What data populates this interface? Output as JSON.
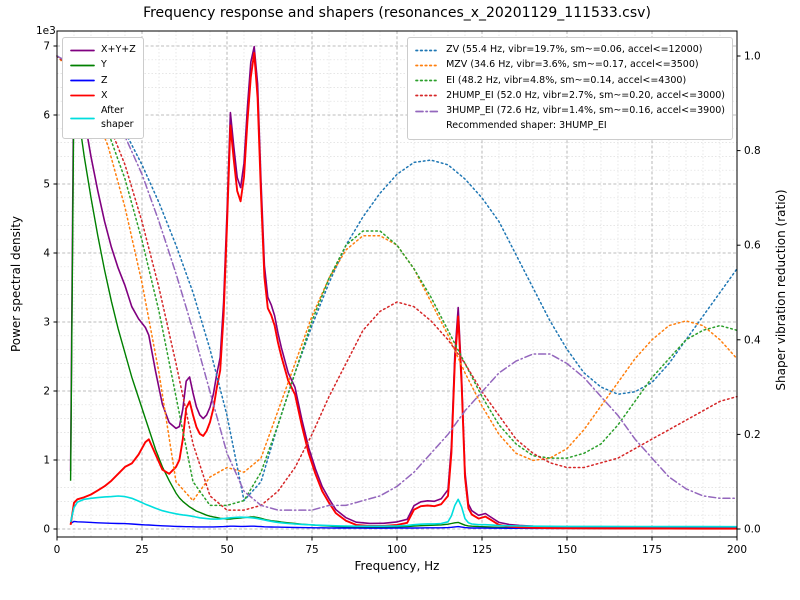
{
  "chart_data": {
    "type": "line",
    "title": "Frequency response and shapers (resonances_x_20201129_111533.csv)",
    "xlabel": "Frequency, Hz",
    "ylabel_left": "Power spectral density",
    "ylabel_right": "Shaper vibration reduction (ratio)",
    "recommendation": "Recommended shaper: 3HUMP_EI",
    "axes": {
      "x": {
        "min": 0,
        "max": 200,
        "ticks": [
          0,
          25,
          50,
          75,
          100,
          125,
          150,
          175,
          200
        ],
        "minor_step": 5
      },
      "left": {
        "min": 0,
        "max": 7000,
        "ticks": [
          0,
          1,
          2,
          3,
          4,
          5,
          6,
          7
        ],
        "scale_label": "1e3",
        "minor_step": 200
      },
      "right": {
        "min": 0,
        "max": 1,
        "ticks": [
          "0.0",
          "0.2",
          "0.4",
          "0.6",
          "0.8",
          "1.0"
        ],
        "tick_step": 0.2
      }
    },
    "psd": {
      "x": [
        4,
        5,
        6,
        8,
        10,
        12,
        14,
        16,
        18,
        20,
        22,
        24,
        26,
        27,
        29,
        31,
        33,
        35,
        36,
        37,
        38,
        39,
        40,
        41,
        42,
        43,
        44,
        45,
        46,
        47,
        48,
        49,
        50,
        51,
        52,
        53,
        54,
        55,
        56,
        57,
        58,
        59,
        60,
        61,
        62,
        63,
        64,
        65,
        66,
        68,
        70,
        72,
        74,
        76,
        78,
        80,
        82,
        85,
        88,
        92,
        96,
        100,
        103,
        105,
        107,
        109,
        111,
        113,
        115,
        116,
        117,
        118,
        119,
        120,
        121,
        122,
        124,
        126,
        128,
        130,
        133,
        136,
        140,
        145,
        150,
        160,
        170,
        180,
        190,
        200
      ],
      "series": [
        {
          "name": "X+Y+Z",
          "color": "#800080",
          "dash": "",
          "width": 1.6,
          "values": [
            840,
            6990,
            6635,
            5960,
            5395,
            4900,
            4455,
            4082,
            3780,
            3528,
            3222,
            3045,
            2920,
            2808,
            2282,
            1806,
            1542,
            1458,
            1486,
            1735,
            2144,
            2203,
            1972,
            1771,
            1650,
            1600,
            1650,
            1765,
            1956,
            2247,
            2488,
            3285,
            4583,
            6035,
            5540,
            5094,
            4948,
            5303,
            6109,
            6765,
            6990,
            6453,
            5040,
            3822,
            3360,
            3249,
            3093,
            2837,
            2626,
            2264,
            2052,
            1590,
            1181,
            873,
            615,
            438,
            281,
            164,
            99,
            81,
            82,
            103,
            140,
            337,
            394,
            409,
            402,
            438,
            570,
            1204,
            2520,
            3210,
            2203,
            825,
            362,
            265,
            199,
            225,
            160,
            95,
            65,
            52,
            41,
            33,
            28,
            24,
            21,
            19,
            16,
            16
          ]
        },
        {
          "name": "Y",
          "color": "#008000",
          "dash": "",
          "width": 1.4,
          "values": [
            700,
            6500,
            6100,
            5400,
            4800,
            4250,
            3750,
            3300,
            2900,
            2550,
            2200,
            1900,
            1600,
            1450,
            1150,
            900,
            700,
            520,
            450,
            400,
            360,
            320,
            290,
            260,
            240,
            220,
            200,
            185,
            175,
            165,
            155,
            150,
            145,
            145,
            150,
            155,
            160,
            165,
            170,
            175,
            175,
            165,
            155,
            140,
            130,
            120,
            115,
            110,
            100,
            90,
            80,
            70,
            62,
            55,
            48,
            42,
            36,
            30,
            26,
            24,
            25,
            30,
            36,
            42,
            48,
            52,
            55,
            60,
            70,
            80,
            90,
            95,
            75,
            55,
            45,
            40,
            35,
            32,
            28,
            24,
            20,
            17,
            14,
            12,
            10,
            8,
            7,
            6,
            5,
            5
          ]
        },
        {
          "name": "Z",
          "color": "#0000ff",
          "dash": "",
          "width": 1.4,
          "values": [
            80,
            110,
            105,
            100,
            95,
            90,
            85,
            82,
            80,
            78,
            72,
            65,
            60,
            58,
            52,
            46,
            42,
            38,
            36,
            35,
            34,
            33,
            32,
            31,
            30,
            30,
            30,
            30,
            31,
            32,
            33,
            35,
            38,
            40,
            40,
            39,
            38,
            38,
            39,
            40,
            40,
            38,
            35,
            32,
            30,
            29,
            28,
            27,
            26,
            24,
            22,
            20,
            19,
            18,
            17,
            16,
            15,
            14,
            13,
            12,
            12,
            13,
            14,
            15,
            16,
            17,
            17,
            18,
            20,
            24,
            30,
            35,
            28,
            20,
            17,
            15,
            14,
            13,
            12,
            11,
            10,
            10,
            9,
            9,
            8,
            8,
            7,
            7,
            6,
            6
          ]
        },
        {
          "name": "X",
          "color": "#ff0000",
          "dash": "",
          "width": 1.9,
          "values": [
            60,
            380,
            430,
            460,
            500,
            560,
            620,
            700,
            800,
            900,
            950,
            1080,
            1260,
            1300,
            1080,
            860,
            800,
            900,
            1000,
            1300,
            1750,
            1850,
            1650,
            1480,
            1380,
            1350,
            1420,
            1550,
            1750,
            2050,
            2300,
            3100,
            4400,
            5850,
            5350,
            4900,
            4750,
            5100,
            5900,
            6550,
            6900,
            6250,
            4850,
            3650,
            3200,
            3100,
            2950,
            2700,
            2500,
            2150,
            1950,
            1500,
            1100,
            800,
            550,
            380,
            230,
            120,
            60,
            45,
            45,
            60,
            90,
            280,
            330,
            340,
            330,
            360,
            480,
            1100,
            2400,
            3080,
            2100,
            750,
            300,
            210,
            150,
            180,
            120,
            60,
            35,
            25,
            18,
            12,
            10,
            8,
            7,
            6,
            5,
            5
          ]
        },
        {
          "name": "After\nshaper",
          "color": "#00dede",
          "dash": "",
          "width": 1.6,
          "values": [
            100,
            310,
            390,
            430,
            445,
            455,
            465,
            470,
            478,
            470,
            445,
            405,
            360,
            340,
            300,
            265,
            240,
            220,
            212,
            205,
            198,
            192,
            182,
            172,
            163,
            156,
            150,
            146,
            144,
            144,
            146,
            150,
            156,
            162,
            167,
            170,
            171,
            170,
            168,
            164,
            158,
            150,
            140,
            130,
            120,
            111,
            103,
            96,
            90,
            80,
            73,
            67,
            62,
            57,
            53,
            49,
            46,
            43,
            41,
            40,
            41,
            45,
            52,
            62,
            70,
            74,
            74,
            80,
            105,
            190,
            340,
            430,
            320,
            150,
            90,
            72,
            62,
            62,
            56,
            50,
            46,
            43,
            41,
            39,
            38,
            37,
            36,
            35,
            35,
            34
          ]
        }
      ]
    },
    "shapers": {
      "x_start": 0,
      "x_step": 5,
      "series": [
        {
          "name": "ZV",
          "label": "ZV (55.4 Hz, vibr=19.7%, sm~=0.06, accel<=12000)",
          "color": "#1f77b4",
          "dash": "1.6 3",
          "values": [
            1.0,
            0.98,
            0.95,
            0.9,
            0.84,
            0.77,
            0.69,
            0.6,
            0.5,
            0.38,
            0.24,
            0.06,
            0.1,
            0.22,
            0.33,
            0.43,
            0.52,
            0.6,
            0.66,
            0.71,
            0.75,
            0.775,
            0.78,
            0.77,
            0.74,
            0.7,
            0.65,
            0.58,
            0.51,
            0.44,
            0.38,
            0.33,
            0.3,
            0.285,
            0.29,
            0.31,
            0.35,
            0.4,
            0.45,
            0.5,
            0.55
          ]
        },
        {
          "name": "MZV",
          "label": "MZV (34.6 Hz, vibr=3.6%, sm~=0.17, accel<=3500)",
          "color": "#ff7f0e",
          "dash": "1.6 3",
          "values": [
            1.0,
            0.96,
            0.9,
            0.81,
            0.68,
            0.52,
            0.33,
            0.1,
            0.06,
            0.11,
            0.13,
            0.12,
            0.15,
            0.25,
            0.35,
            0.45,
            0.53,
            0.59,
            0.62,
            0.62,
            0.6,
            0.55,
            0.48,
            0.41,
            0.33,
            0.26,
            0.2,
            0.16,
            0.145,
            0.15,
            0.17,
            0.21,
            0.26,
            0.31,
            0.36,
            0.4,
            0.43,
            0.44,
            0.43,
            0.4,
            0.36
          ]
        },
        {
          "name": "EI",
          "label": "EI (48.2 Hz, vibr=4.8%, sm~=0.14, accel<=4300)",
          "color": "#2ca02c",
          "dash": "1.6 3",
          "values": [
            1.0,
            0.97,
            0.92,
            0.84,
            0.74,
            0.61,
            0.46,
            0.28,
            0.1,
            0.05,
            0.05,
            0.06,
            0.12,
            0.22,
            0.33,
            0.44,
            0.53,
            0.6,
            0.63,
            0.63,
            0.6,
            0.55,
            0.49,
            0.42,
            0.35,
            0.28,
            0.22,
            0.18,
            0.155,
            0.15,
            0.15,
            0.16,
            0.18,
            0.22,
            0.27,
            0.32,
            0.36,
            0.4,
            0.42,
            0.43,
            0.42
          ]
        },
        {
          "name": "2HUMP_EI",
          "label": "2HUMP_EI (52.0 Hz, vibr=2.7%, sm~=0.20, accel<=3000)",
          "color": "#d62728",
          "dash": "1.6 3",
          "values": [
            1.0,
            0.97,
            0.93,
            0.86,
            0.77,
            0.65,
            0.51,
            0.35,
            0.18,
            0.07,
            0.04,
            0.04,
            0.05,
            0.08,
            0.13,
            0.2,
            0.28,
            0.35,
            0.42,
            0.46,
            0.48,
            0.47,
            0.44,
            0.4,
            0.35,
            0.29,
            0.24,
            0.19,
            0.16,
            0.14,
            0.13,
            0.13,
            0.14,
            0.15,
            0.17,
            0.19,
            0.21,
            0.23,
            0.25,
            0.27,
            0.28
          ]
        },
        {
          "name": "3HUMP_EI",
          "label": "3HUMP_EI (72.6 Hz, vibr=1.4%, sm~=0.16, accel<=3900)",
          "color": "#9467bd",
          "dash": "7 3 1.3 3",
          "values": [
            1.0,
            0.98,
            0.95,
            0.9,
            0.83,
            0.75,
            0.65,
            0.54,
            0.42,
            0.29,
            0.16,
            0.08,
            0.05,
            0.04,
            0.04,
            0.04,
            0.05,
            0.05,
            0.06,
            0.07,
            0.09,
            0.12,
            0.16,
            0.2,
            0.25,
            0.29,
            0.33,
            0.355,
            0.37,
            0.37,
            0.35,
            0.32,
            0.28,
            0.24,
            0.19,
            0.15,
            0.11,
            0.085,
            0.07,
            0.065,
            0.065
          ]
        }
      ]
    }
  }
}
